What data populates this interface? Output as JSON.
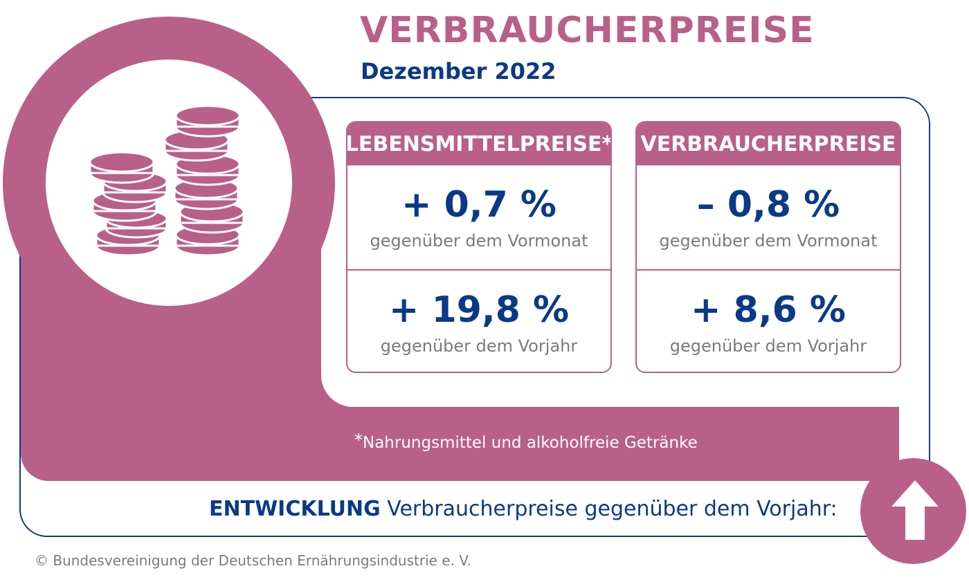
{
  "header": {
    "title": "VERBRAUCHERPREISE",
    "subtitle": "Dezember 2022"
  },
  "icon": {
    "name": "coins-icon",
    "color": "#b86088"
  },
  "cards": [
    {
      "heading": "LEBENSMITTELPREISE*",
      "monthly_value": "+ 0,7 %",
      "monthly_caption": "gegenüber dem Vormonat",
      "yearly_value": "+ 19,8 %",
      "yearly_caption": "gegenüber dem Vorjahr"
    },
    {
      "heading": "VERBRAUCHERPREISE",
      "monthly_value": "– 0,8 %",
      "monthly_caption": "gegenüber dem Vormonat",
      "yearly_value": "+ 8,6 %",
      "yearly_caption": "gegenüber dem Vorjahr"
    }
  ],
  "footnote": {
    "marker": "*",
    "text": "Nahrungsmittel und alkoholfreie Getränke"
  },
  "development": {
    "label_bold": "ENTWICKLUNG",
    "label_rest": " Verbraucherpreise gegenüber dem Vorjahr:",
    "trend_icon": "arrow-up-icon"
  },
  "copyright": "© Bundesvereinigung der Deutschen Ernährungsindustrie e. V.",
  "colors": {
    "accent": "#b86088",
    "primary": "#0a3a86",
    "caption": "#7a7a7a"
  }
}
